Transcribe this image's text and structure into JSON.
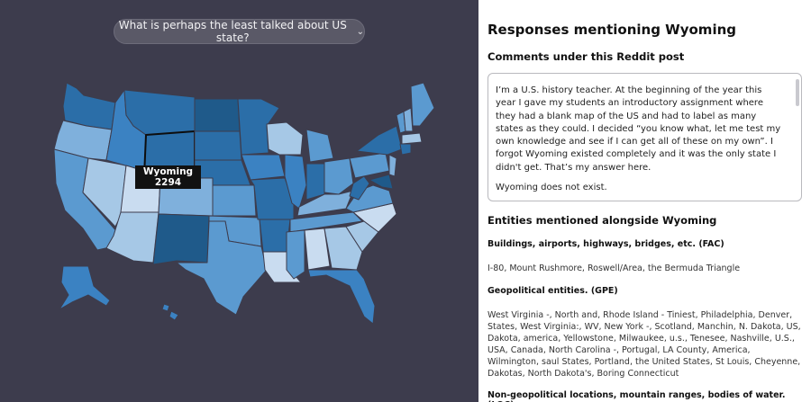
{
  "question": {
    "label": "What is perhaps the least talked about US state?",
    "chevron_icon": "chevron-down-icon"
  },
  "map": {
    "tooltip": {
      "state": "Wyoming",
      "count": "2294"
    },
    "colors": {
      "background": "#3d3c4d",
      "darkest": "#1f5a8a",
      "dark": "#2b6ea8",
      "mid": "#3b82c2",
      "medium_light": "#5b9ad0",
      "light": "#7fb0dc",
      "lighter": "#a6c8e6",
      "lightest": "#c9dcf0",
      "border_highlight": "#0d0d0d"
    }
  },
  "detail": {
    "title": "Responses mentioning Wyoming",
    "comments_heading": "Comments under this Reddit post",
    "comment_paragraphs": [
      "I’m a U.S. history teacher. At the beginning of the year this year I gave my students an introductory assignment where they had a blank map of the US and had to label as many states as they could. I decided “you know what, let me test my own knowledge and see if I can get all of these on my own”. I forgot Wyoming existed completely and it was the only state I didn't get. That’s my answer here.",
      "Wyoming does not exist."
    ],
    "entities_heading": "Entities mentioned alongside Wyoming",
    "categories": [
      {
        "label": "Buildings, airports, highways, bridges, etc. (FAC)",
        "values": "I-80, Mount Rushmore, Roswell/Area, the Bermuda Triangle"
      },
      {
        "label": "Geopolitical entities. (GPE)",
        "values": "West Virginia -, North and, Rhode Island - Tiniest, Philadelphia, Denver, States, West Virginia:, WV, New York -, Scotland, Manchin, N. Dakota, US, Dakota, america, Yellowstone, Milwaukee, u.s., Tenesee, Nashville, U.S., USA, Canada, North Carolina -, Portugal, LA County, America, Wilmington, saul States, Portland, the United States, St Louis, Cheyenne, Dakotas, North Dakota's, Boring Connecticut"
      },
      {
        "label": "Non-geopolitical locations, mountain ranges, bodies of water. (LOC)",
        "values": ""
      }
    ]
  }
}
